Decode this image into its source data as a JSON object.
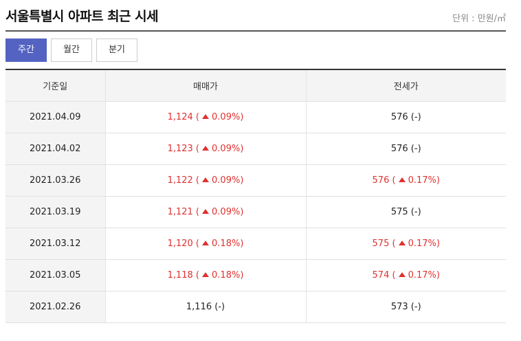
{
  "header": {
    "title": "서울특별시 아파트 최근 시세",
    "unit": "단위 : 만원/㎡"
  },
  "tabs": [
    {
      "label": "주간",
      "active": true
    },
    {
      "label": "월간",
      "active": false
    },
    {
      "label": "분기",
      "active": false
    }
  ],
  "table": {
    "columns": [
      "기준일",
      "매매가",
      "전세가"
    ],
    "rows": [
      {
        "date": "2021.04.09",
        "sale": "1,124",
        "sale_change": "0.09%",
        "sale_up": true,
        "jeonse": "576",
        "jeonse_change": "-",
        "jeonse_up": false
      },
      {
        "date": "2021.04.02",
        "sale": "1,123",
        "sale_change": "0.09%",
        "sale_up": true,
        "jeonse": "576",
        "jeonse_change": "-",
        "jeonse_up": false
      },
      {
        "date": "2021.03.26",
        "sale": "1,122",
        "sale_change": "0.09%",
        "sale_up": true,
        "jeonse": "576",
        "jeonse_change": "0.17%",
        "jeonse_up": true
      },
      {
        "date": "2021.03.19",
        "sale": "1,121",
        "sale_change": "0.09%",
        "sale_up": true,
        "jeonse": "575",
        "jeonse_change": "-",
        "jeonse_up": false
      },
      {
        "date": "2021.03.12",
        "sale": "1,120",
        "sale_change": "0.18%",
        "sale_up": true,
        "jeonse": "575",
        "jeonse_change": "0.17%",
        "jeonse_up": true
      },
      {
        "date": "2021.03.05",
        "sale": "1,118",
        "sale_change": "0.18%",
        "sale_up": true,
        "jeonse": "574",
        "jeonse_change": "0.17%",
        "jeonse_up": true
      },
      {
        "date": "2021.02.26",
        "sale": "1,116",
        "sale_change": "-",
        "sale_up": false,
        "jeonse": "573",
        "jeonse_change": "-",
        "jeonse_up": false
      }
    ]
  },
  "colors": {
    "accent": "#5462c1",
    "up": "#e0302e"
  }
}
